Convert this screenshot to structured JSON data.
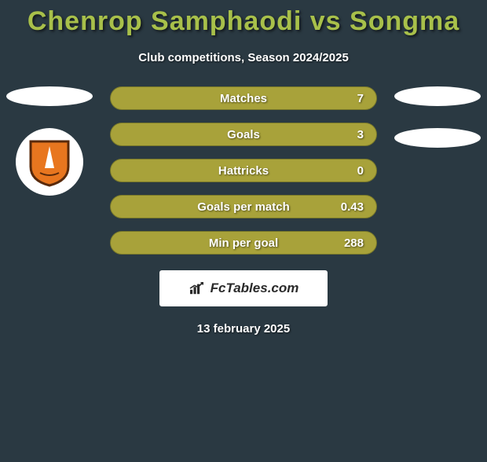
{
  "title": "Chenrop Samphaodi vs Songma",
  "subtitle": "Club competitions, Season 2024/2025",
  "date": "13 february 2025",
  "attribution": "FcTables.com",
  "colors": {
    "background": "#2a3942",
    "accent": "#a8c04a",
    "bar": "#a8a23a",
    "bar_border": "#78782a",
    "white": "#ffffff",
    "shield_fill": "#e8761f",
    "shield_border": "#5a2a0a"
  },
  "stats": [
    {
      "label": "Matches",
      "value": "7"
    },
    {
      "label": "Goals",
      "value": "3"
    },
    {
      "label": "Hattricks",
      "value": "0"
    },
    {
      "label": "Goals per match",
      "value": "0.43"
    },
    {
      "label": "Min per goal",
      "value": "288"
    }
  ],
  "left_placeholders": 1,
  "right_placeholders": 2
}
